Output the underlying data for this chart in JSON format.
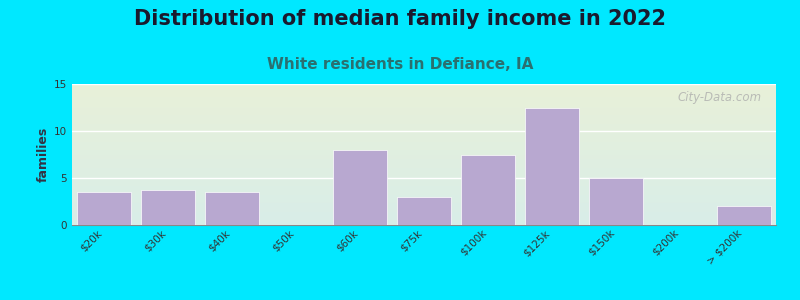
{
  "title": "Distribution of median family income in 2022",
  "subtitle": "White residents in Defiance, IA",
  "categories": [
    "$20k",
    "$30k",
    "$40k",
    "$50k",
    "$60k",
    "$75k",
    "$100k",
    "$125k",
    "$150k",
    "$200k",
    "> $200k"
  ],
  "values": [
    3.5,
    3.7,
    3.5,
    0,
    8,
    3,
    7.5,
    12.5,
    5,
    0,
    2
  ],
  "bar_color": "#b8a8d0",
  "bar_edge_color": "#ffffff",
  "background_outer": "#00e8ff",
  "plot_bg_top_color": "#e8f0d8",
  "plot_bg_bottom_color": "#d8ede8",
  "title_fontsize": 15,
  "title_color": "#1a1a2e",
  "subtitle_fontsize": 11,
  "subtitle_color": "#2a7070",
  "ylabel": "families",
  "ylabel_fontsize": 9,
  "ylim": [
    0,
    15
  ],
  "yticks": [
    0,
    5,
    10,
    15
  ],
  "watermark": "City-Data.com",
  "tick_fontsize": 7.5,
  "grid_color": "#ffffff",
  "spine_color": "#888888"
}
